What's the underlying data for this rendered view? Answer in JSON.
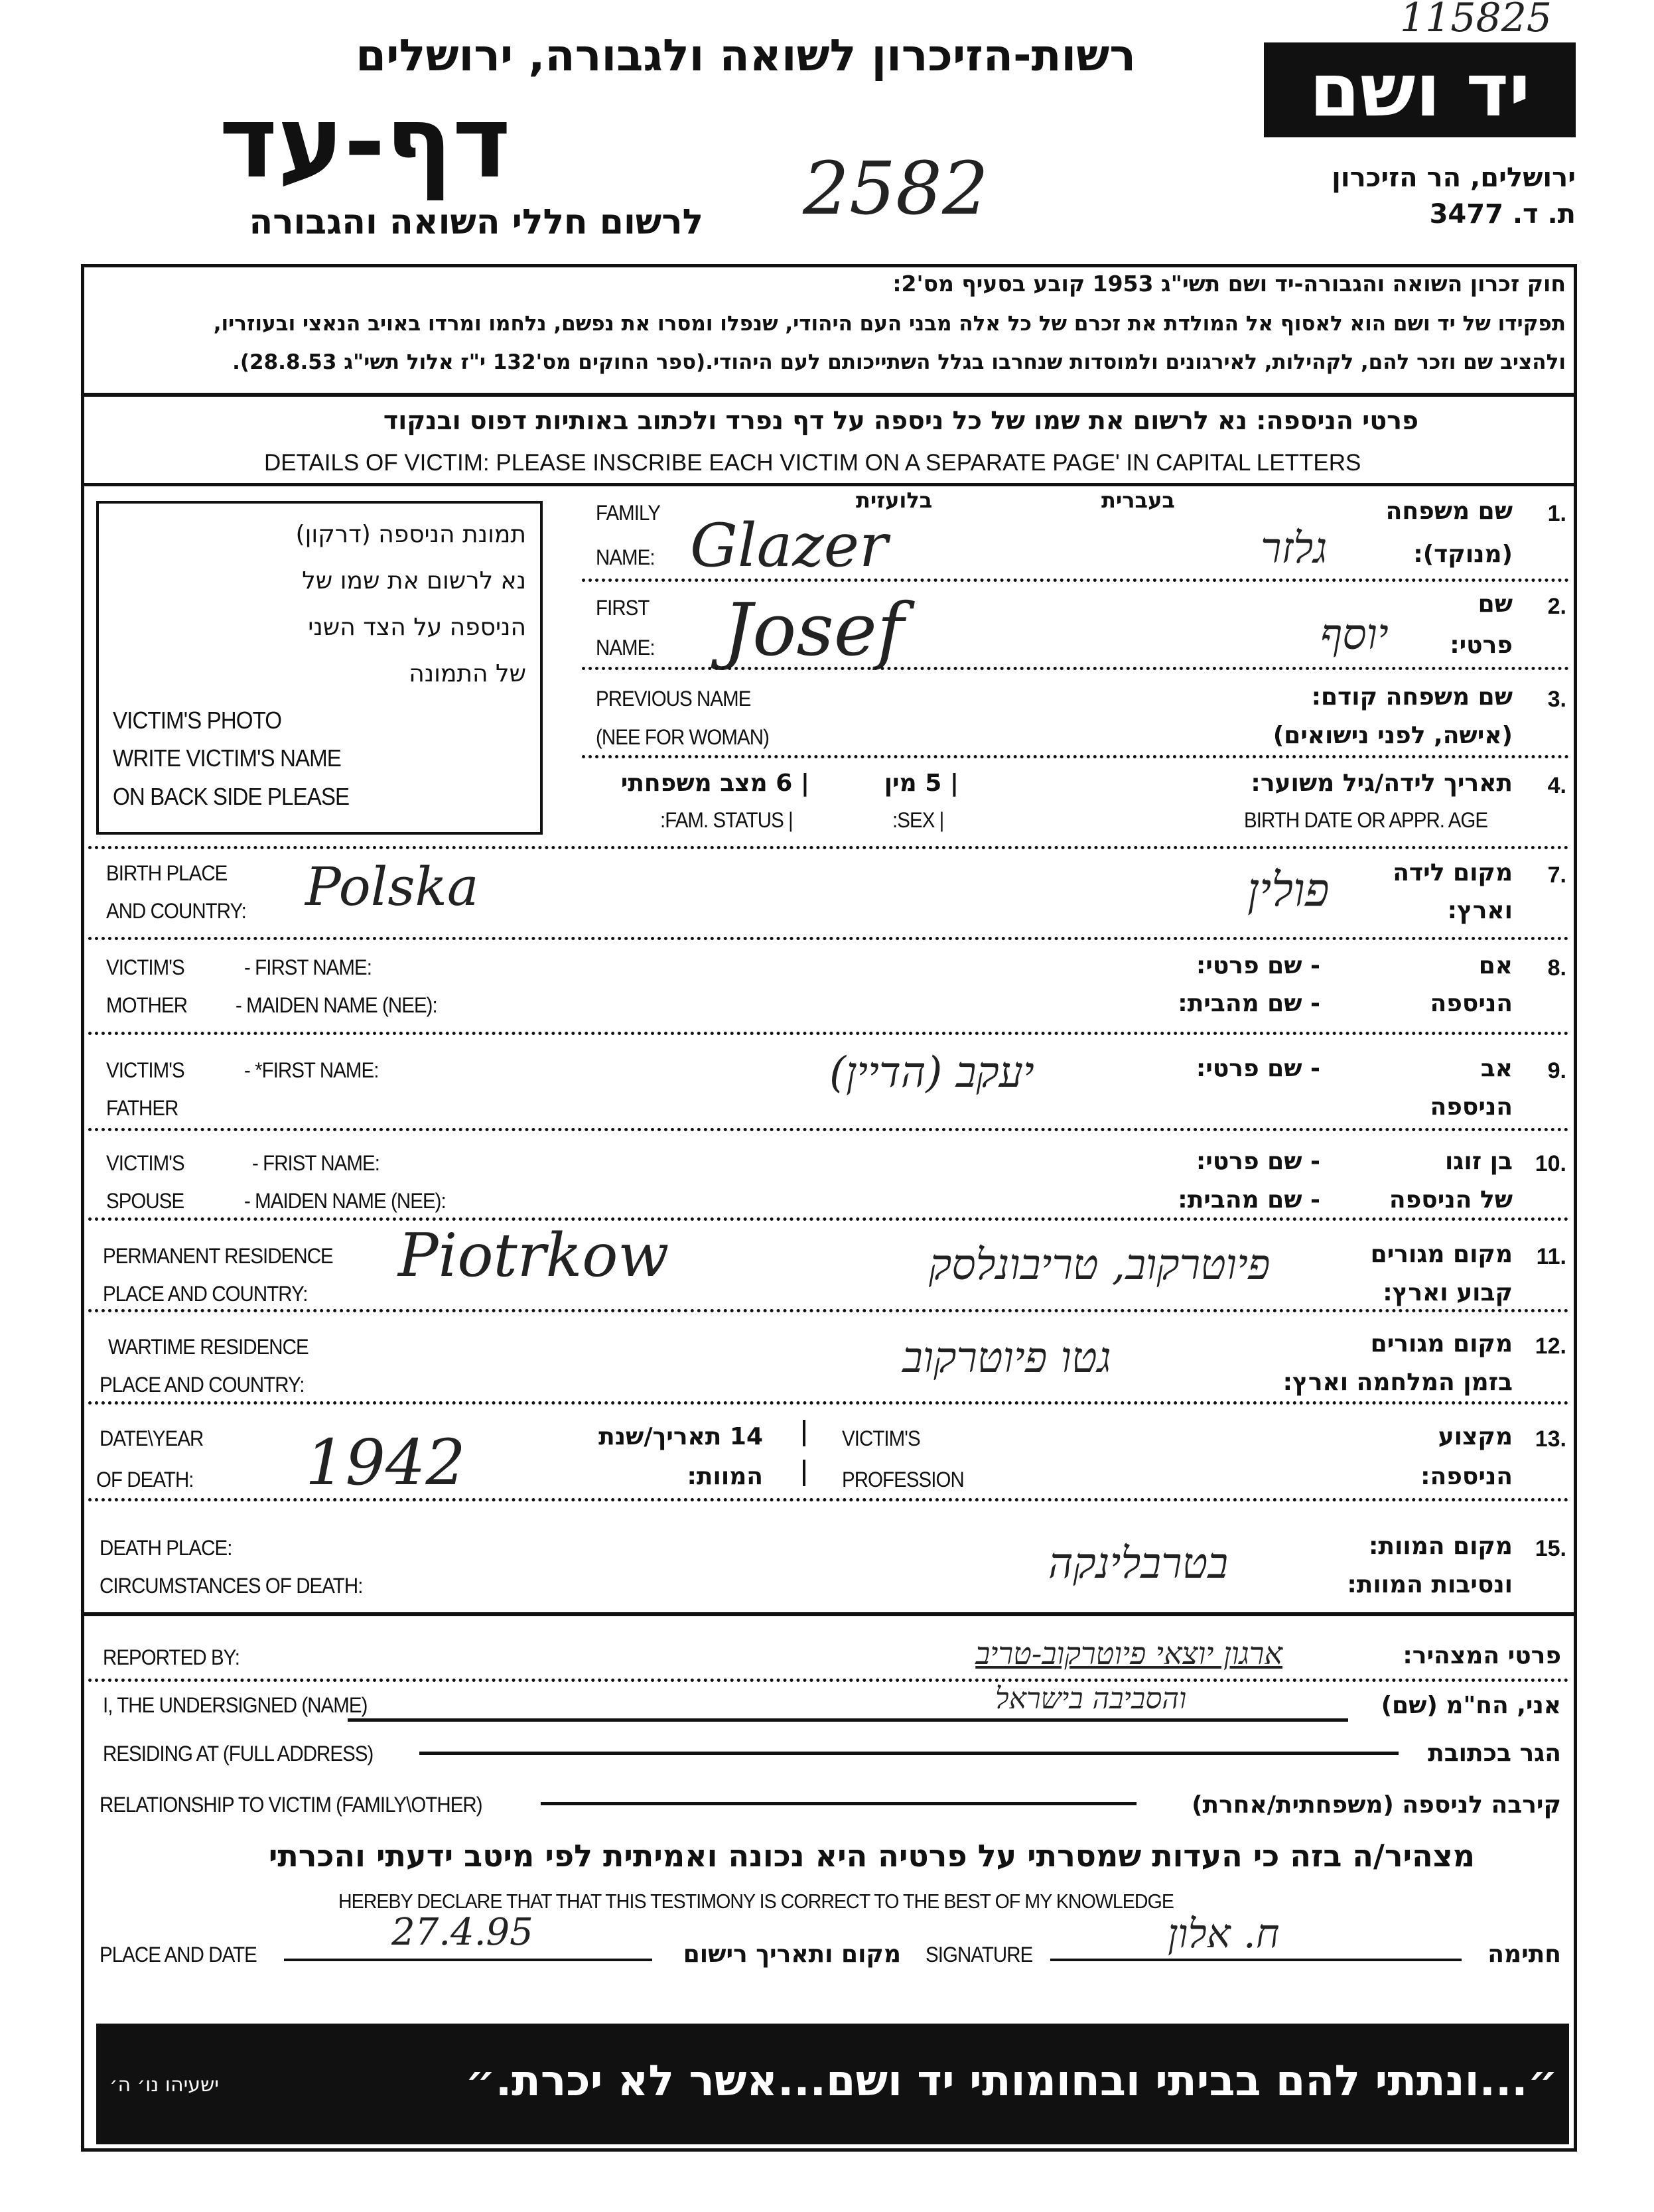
{
  "archive_number": "115825",
  "page_number": "2582",
  "header": {
    "org_title": "רשות-הזיכרון לשואה ולגבורה, ירושלים",
    "form_title": "דף-עד",
    "subtitle": "לרשום חללי השואה והגבורה",
    "logo": "יד ושם",
    "address": "ירושלים, הר הזיכרון",
    "po_box": "ת. ד. 3477"
  },
  "law": {
    "line1": "חוק זכרון השואה והגבורה-יד ושם תשי\"ג 1953 קובע בסעיף מס'2:",
    "line2": "תפקידו של יד ושם הוא לאסוף אל המולדת את זכרם של כל אלה מבני העם היהודי, שנפלו ומסרו את נפשם, נלחמו ומרדו באויב הנאצי ובעוזריו,",
    "line3": "ולהציב שם וזכר להם, לקהילות, לאירגונים ולמוסדות שנחרבו בגלל השתייכותם לעם היהודי.(ספר החוקים מס'132 י\"ז אלול תשי\"ג 28.8.53)."
  },
  "instructions": {
    "hebrew": "פרטי הניספה: נא לרשום את שמו של כל ניספה על דף נפרד ולכתוב באותיות דפוס ובנקוד",
    "english": "DETAILS OF VICTIM: PLEASE INSCRIBE EACH VICTIM ON A SEPARATE PAGE' IN CAPITAL LETTERS"
  },
  "photo_box": {
    "hebrew": [
      "תמונת הניספה (דרקון)",
      "נא לרשום את שמו של",
      "הניספה על הצד השני",
      "של התמונה"
    ],
    "english": [
      "VICTIM'S PHOTO",
      "WRITE VICTIM'S NAME",
      "ON BACK SIDE PLEASE"
    ]
  },
  "columns": {
    "latin": "בלועזית",
    "hebrew": "בעברית"
  },
  "fields": {
    "family": {
      "num": "1.",
      "he1": "שם משפחה",
      "he2": "(מנוקד):",
      "en1": "FAMILY",
      "en2": "NAME:",
      "value_latin": "Glazer",
      "value_hebrew": "גלזר"
    },
    "first": {
      "num": "2.",
      "he1": "שם",
      "he2": "פרטי:",
      "en1": "FIRST",
      "en2": "NAME:",
      "value_latin": "Josef",
      "value_hebrew": "יוסף"
    },
    "previous": {
      "num": "3.",
      "he1": "שם משפחה קודם:",
      "he2": "(אישה, לפני נישואים)",
      "en1": "PREVIOUS NAME",
      "en2": "(NEE FOR WOMAN)"
    },
    "birth": {
      "num": "4.",
      "he1": "תאריך לידה/גיל משוער:",
      "en1": "BIRTH DATE OR APPR. AGE",
      "sex_he": "| 5 מין",
      "sex_en": ":SEX |",
      "fam_he": "| 6 מצב משפחתי",
      "fam_en": ":FAM. STATUS |"
    },
    "birthplace": {
      "num": "7.",
      "he1": "מקום לידה",
      "he2": "וארץ:",
      "en1": "BIRTH PLACE",
      "en2": "AND COUNTRY:",
      "value_latin": "Polska",
      "value_hebrew": "פולין"
    },
    "mother": {
      "num": "8.",
      "he1": "אם",
      "he2": "הניספה",
      "en1": "VICTIM'S",
      "en2": "MOTHER",
      "sub_en1": "- FIRST NAME:",
      "sub_en2": "- MAIDEN NAME (NEE):",
      "sub_he1": "- שם פרטי:",
      "sub_he2": "- שם מהבית:"
    },
    "father": {
      "num": "9.",
      "he1": "אב",
      "he2": "הניספה",
      "en1": "VICTIM'S",
      "en2": "FATHER",
      "sub_en1": "- *FIRST NAME:",
      "sub_he1": "- שם פרטי:",
      "value_hebrew": "יעקב (הדיין)"
    },
    "spouse": {
      "num": "10.",
      "he1": "בן זוגו",
      "he2": "של הניספה",
      "en1": "VICTIM'S",
      "en2": "SPOUSE",
      "sub_en1": "- FRIST NAME:",
      "sub_en2": "- MAIDEN NAME (NEE):",
      "sub_he1": "- שם פרטי:",
      "sub_he2": "- שם מהבית:"
    },
    "permanent": {
      "num": "11.",
      "he1": "מקום מגורים",
      "he2": "קבוע וארץ:",
      "en1": "PERMANENT RESIDENCE",
      "en2": "PLACE AND COUNTRY:",
      "value_latin": "Piotrkow",
      "value_hebrew": "פיוטרקוב, טריבונלסק"
    },
    "wartime": {
      "num": "12.",
      "he1": "מקום מגורים",
      "he2": "בזמן המלחמה וארץ:",
      "en1": "WARTIME RESIDENCE",
      "en2": "PLACE AND COUNTRY:",
      "value_hebrew": "גטו פיוטרקוב"
    },
    "death": {
      "num": "13.",
      "he1": "מקצוע",
      "he2": "הניספה:",
      "en1": "DATE\\YEAR",
      "en2": "OF DEATH:",
      "value_year": "1942",
      "date_he1": "14 תאריך/שנת",
      "date_he2": "המוות:",
      "prof_en1": "VICTIM'S",
      "prof_en2": "PROFESSION"
    },
    "deathplace": {
      "num": "15.",
      "he1": "מקום המוות:",
      "he2": "ונסיבות המוות:",
      "en1": "DEATH PLACE:",
      "en2": "CIRCUMSTANCES OF DEATH:",
      "value_hebrew": "בטרבלינקה"
    }
  },
  "reporter": {
    "reported_by_en": "REPORTED BY:",
    "reported_by_he": "פרטי המצהיר:",
    "reported_by_value": "ארגון יוצאי פיוטרקוב-טריב",
    "name_en": "I, THE UNDERSIGNED (NAME)",
    "name_he": "אני, הח\"מ (שם)",
    "name_value": "והסביבה בישראל",
    "address_en": "RESIDING AT (FULL ADDRESS)",
    "address_he": "הגר בכתובת",
    "relation_en": "RELATIONSHIP TO VICTIM (FAMILY\\OTHER)",
    "relation_he": "קירבה לניספה (משפחתית/אחרת)"
  },
  "declaration": {
    "hebrew": "מצהיר/ה בזה כי העדות שמסרתי על פרטיה היא נכונה ואמיתית לפי מיטב ידעתי והכרתי",
    "english": "HEREBY DECLARE THAT THAT THIS TESTIMONY IS CORRECT TO THE BEST OF MY KNOWLEDGE"
  },
  "signing": {
    "place_date_en": "PLACE AND DATE",
    "place_date_value": "27.4.95",
    "place_date_he": "מקום ותאריך רישום",
    "signature_en": "SIGNATURE",
    "signature_value": "ח. אלון",
    "signature_he": "חתימה"
  },
  "footer": {
    "quote": "״...ונתתי להם בביתי ובחומותי יד ושם...אשר לא יכרת.״",
    "source": "ישעיהו נו׳ ה׳"
  }
}
